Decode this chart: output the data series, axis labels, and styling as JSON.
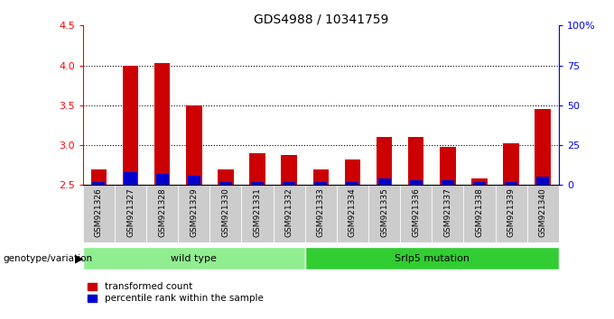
{
  "title": "GDS4988 / 10341759",
  "samples": [
    "GSM921326",
    "GSM921327",
    "GSM921328",
    "GSM921329",
    "GSM921330",
    "GSM921331",
    "GSM921332",
    "GSM921333",
    "GSM921334",
    "GSM921335",
    "GSM921336",
    "GSM921337",
    "GSM921338",
    "GSM921339",
    "GSM921340"
  ],
  "red_values": [
    2.7,
    4.0,
    4.03,
    3.5,
    2.7,
    2.9,
    2.88,
    2.7,
    2.82,
    3.1,
    3.1,
    2.98,
    2.58,
    3.02,
    3.45
  ],
  "blue_values": [
    2,
    8,
    7,
    6,
    2,
    2,
    2,
    2,
    2,
    4,
    3,
    3,
    2,
    2,
    5
  ],
  "ylim_left": [
    2.5,
    4.5
  ],
  "ylim_right": [
    0,
    100
  ],
  "yticks_left": [
    2.5,
    3.0,
    3.5,
    4.0,
    4.5
  ],
  "yticks_right": [
    0,
    25,
    50,
    75,
    100
  ],
  "ytick_labels_right": [
    "0",
    "25",
    "50",
    "75",
    "100%"
  ],
  "red_color": "#cc0000",
  "blue_color": "#0000cc",
  "wild_type_count": 7,
  "wild_type_label": "wild type",
  "mutation_label": "Srlp5 mutation",
  "genotype_label": "genotype/variation",
  "legend_red": "transformed count",
  "legend_blue": "percentile rank within the sample",
  "wild_type_color": "#90ee90",
  "mutation_color": "#32cd32",
  "bar_bottom": 2.5,
  "bar_width": 0.5,
  "blue_bar_width": 0.4
}
